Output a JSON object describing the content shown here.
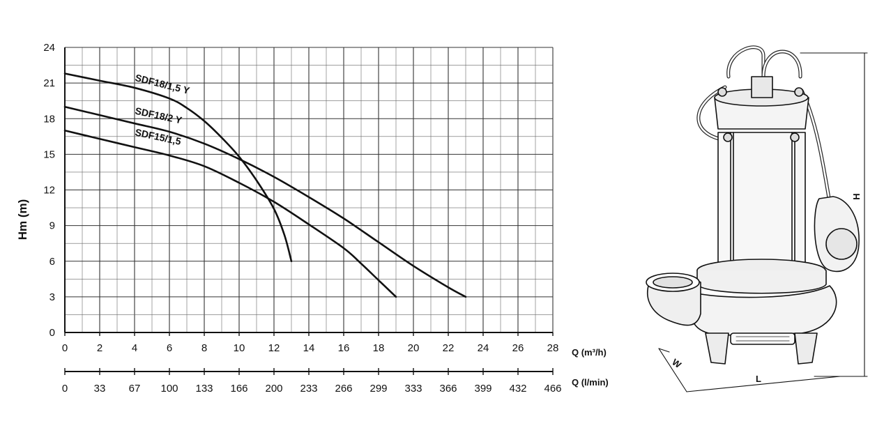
{
  "chart_data": {
    "type": "line",
    "ylabel": "Hm (m)",
    "xlabel": "Q (m³/h)",
    "xlabel_secondary": "Q (l/min)",
    "xlim": [
      0,
      28
    ],
    "ylim": [
      0,
      24
    ],
    "x_ticks": [
      "0",
      "2",
      "4",
      "6",
      "8",
      "10",
      "12",
      "14",
      "16",
      "18",
      "20",
      "22",
      "24",
      "26",
      "28"
    ],
    "x2_ticks": [
      "0",
      "33",
      "67",
      "100",
      "133",
      "166",
      "200",
      "233",
      "266",
      "299",
      "333",
      "366",
      "399",
      "432",
      "466"
    ],
    "y_ticks": [
      "0",
      "3",
      "6",
      "9",
      "12",
      "15",
      "18",
      "21",
      "24"
    ],
    "grid": true,
    "series": [
      {
        "name": "SDF18/1,5 Y",
        "x": [
          0,
          2,
          4,
          6,
          7,
          8,
          9,
          10,
          11,
          12,
          12.6,
          13
        ],
        "y": [
          21.8,
          21.2,
          20.6,
          19.7,
          18.9,
          17.8,
          16.4,
          14.8,
          12.8,
          10.4,
          8.2,
          6
        ]
      },
      {
        "name": "SDF18/2 Y",
        "x": [
          0,
          2,
          4,
          6,
          8,
          10,
          12,
          14,
          16,
          18,
          20,
          22,
          23
        ],
        "y": [
          19,
          18.3,
          17.6,
          16.9,
          15.9,
          14.6,
          13.1,
          11.4,
          9.6,
          7.6,
          5.6,
          3.8,
          3
        ]
      },
      {
        "name": "SDF15/1,5",
        "x": [
          0,
          2,
          4,
          6,
          8,
          10,
          12,
          14,
          16,
          17,
          18,
          19
        ],
        "y": [
          17,
          16.3,
          15.6,
          14.9,
          14,
          12.6,
          11,
          9.1,
          7.1,
          5.8,
          4.4,
          3
        ]
      }
    ]
  },
  "drawing": {
    "height_label": "H",
    "width_label": "W",
    "length_label": "L"
  }
}
